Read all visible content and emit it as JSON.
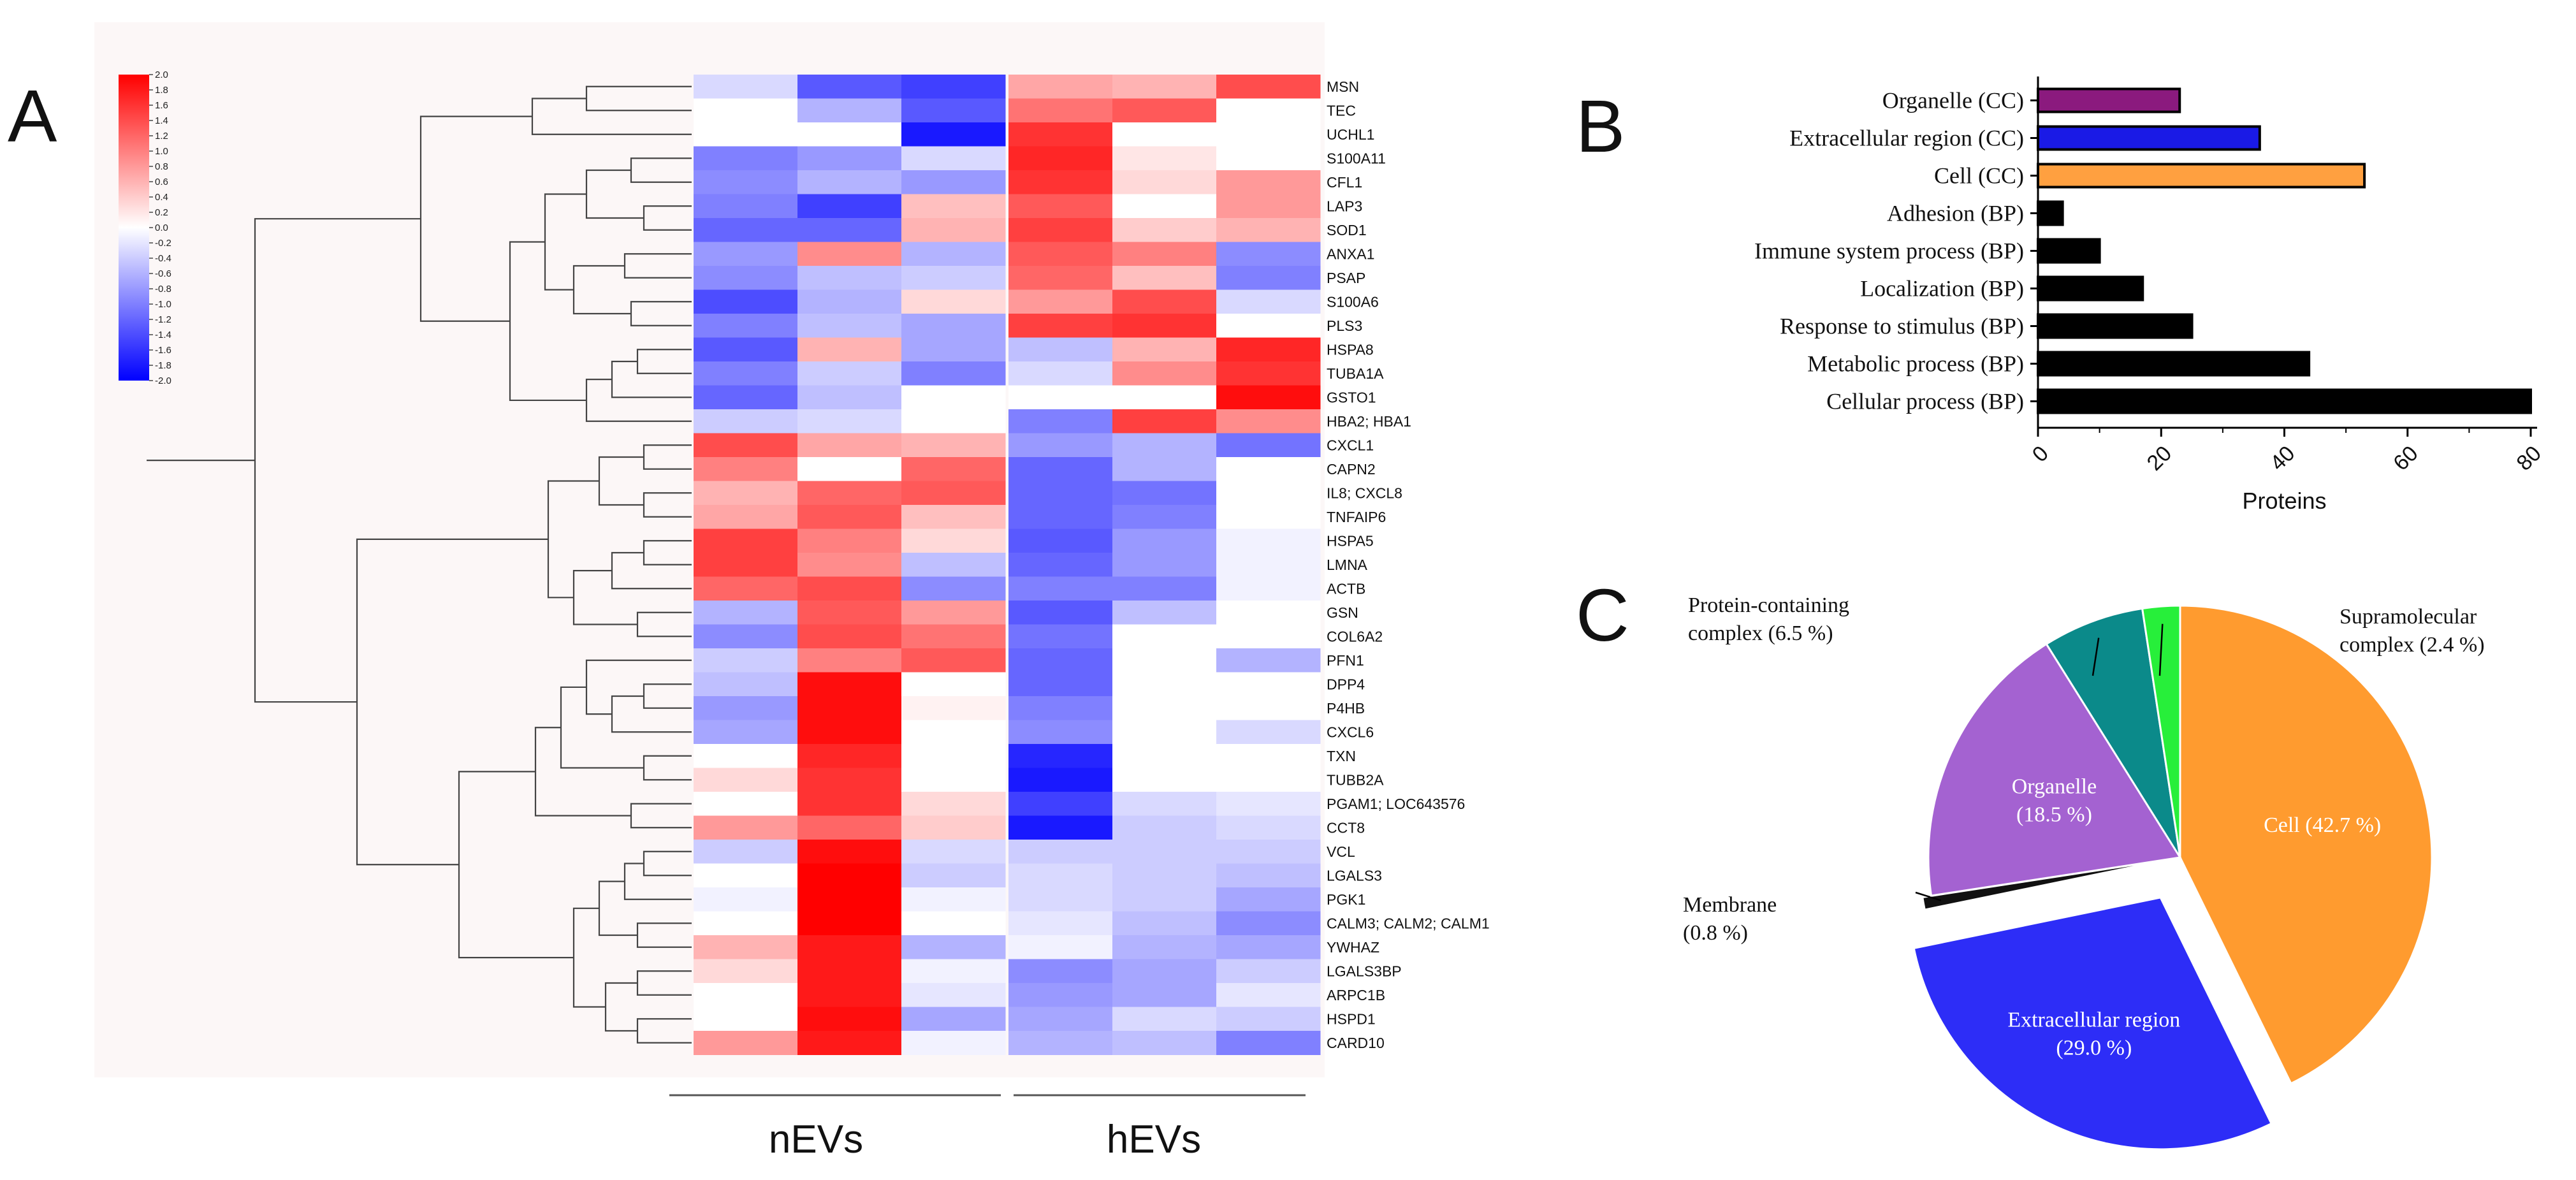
{
  "panels": {
    "a": "A",
    "b": "B",
    "c": "C"
  },
  "chart_data": [
    {
      "type": "heatmap",
      "panel": "A",
      "colorbar": {
        "min": -2.0,
        "max": 2.0,
        "ticks": [
          "2.0",
          "1.8",
          "1.6",
          "1.4",
          "1.2",
          "1.0",
          "0.8",
          "0.6",
          "0.4",
          "0.2",
          "0.0",
          "-0.2",
          "-0.4",
          "-0.6",
          "-0.8",
          "-1.0",
          "-1.2",
          "-1.4",
          "-1.6",
          "-1.8",
          "-2.0"
        ],
        "colors": {
          "low": "#0000ff",
          "mid": "#ffffff",
          "high": "#ff0000"
        }
      },
      "groups": [
        {
          "name": "nEVs",
          "columns": 3
        },
        {
          "name": "hEVs",
          "columns": 3
        }
      ],
      "genes": [
        "MSN",
        "TEC",
        "UCHL1",
        "S100A11",
        "CFL1",
        "LAP3",
        "SOD1",
        "ANXA1",
        "PSAP",
        "S100A6",
        "PLS3",
        "HSPA8",
        "TUBA1A",
        "GSTO1",
        "HBA2; HBA1",
        "CXCL1",
        "CAPN2",
        "IL8; CXCL8",
        "TNFAIP6",
        "HSPA5",
        "LMNA",
        "ACTB",
        "GSN",
        "COL6A2",
        "PFN1",
        "DPP4",
        "P4HB",
        "CXCL6",
        "TXN",
        "TUBB2A",
        "PGAM1; LOC643576",
        "CCT8",
        "VCL",
        "LGALS3",
        "PGK1",
        "CALM3; CALM2; CALM1",
        "YWHAZ",
        "LGALS3BP",
        "ARPC1B",
        "HSPD1",
        "CARD10"
      ],
      "values": [
        [
          -0.3,
          -1.3,
          -1.5,
          0.7,
          0.6,
          1.4
        ],
        [
          0.0,
          -0.6,
          -1.3,
          1.1,
          1.3,
          0.0
        ],
        [
          0.0,
          0.0,
          -1.8,
          1.6,
          0.0,
          0.0
        ],
        [
          -1.0,
          -0.8,
          -0.3,
          1.7,
          0.2,
          0.0
        ],
        [
          -0.9,
          -0.6,
          -0.8,
          1.6,
          0.3,
          0.8
        ],
        [
          -1.0,
          -1.5,
          0.5,
          1.3,
          0.0,
          0.8
        ],
        [
          -1.2,
          -1.2,
          0.6,
          1.5,
          0.4,
          0.6
        ],
        [
          -0.8,
          0.9,
          -0.6,
          1.3,
          1.0,
          -0.9
        ],
        [
          -0.9,
          -0.5,
          -0.4,
          1.2,
          0.5,
          -1.0
        ],
        [
          -1.4,
          -0.6,
          0.3,
          0.8,
          1.4,
          -0.3
        ],
        [
          -1.0,
          -0.5,
          -0.7,
          1.5,
          1.6,
          0.0
        ],
        [
          -1.3,
          0.6,
          -0.7,
          -0.5,
          0.6,
          1.7
        ],
        [
          -1.0,
          -0.4,
          -1.0,
          -0.3,
          0.9,
          1.6
        ],
        [
          -1.2,
          -0.5,
          0.0,
          0.0,
          0.0,
          1.9
        ],
        [
          -0.4,
          -0.3,
          0.0,
          -1.0,
          1.5,
          0.9
        ],
        [
          1.4,
          0.7,
          0.6,
          -0.8,
          -0.6,
          -1.1
        ],
        [
          1.0,
          0.0,
          1.2,
          -1.2,
          -0.6,
          0.0
        ],
        [
          0.6,
          1.2,
          1.3,
          -1.2,
          -1.1,
          0.0
        ],
        [
          0.7,
          1.3,
          0.5,
          -1.2,
          -1.0,
          0.0
        ],
        [
          1.5,
          1.0,
          0.3,
          -1.3,
          -0.8,
          -0.1
        ],
        [
          1.5,
          0.9,
          -0.5,
          -1.2,
          -0.8,
          -0.1
        ],
        [
          1.2,
          1.4,
          -0.9,
          -1.0,
          -1.0,
          -0.1
        ],
        [
          -0.6,
          1.3,
          0.8,
          -1.3,
          -0.5,
          0.0
        ],
        [
          -0.9,
          1.4,
          1.1,
          -1.1,
          0.0,
          0.0
        ],
        [
          -0.4,
          1.0,
          1.3,
          -1.2,
          0.0,
          -0.6
        ],
        [
          -0.5,
          1.9,
          0.0,
          -1.2,
          0.0,
          0.0
        ],
        [
          -0.8,
          1.9,
          0.1,
          -1.0,
          0.0,
          0.0
        ],
        [
          -0.7,
          1.9,
          0.0,
          -0.9,
          0.0,
          -0.3
        ],
        [
          0.0,
          1.7,
          0.0,
          -1.7,
          0.0,
          0.0
        ],
        [
          0.3,
          1.6,
          0.0,
          -1.8,
          0.0,
          0.0
        ],
        [
          0.0,
          1.6,
          0.3,
          -1.5,
          -0.3,
          -0.2
        ],
        [
          0.8,
          1.2,
          0.4,
          -1.8,
          -0.4,
          -0.3
        ],
        [
          -0.4,
          1.9,
          -0.3,
          -0.4,
          -0.4,
          -0.4
        ],
        [
          0.0,
          2.0,
          -0.4,
          -0.3,
          -0.4,
          -0.5
        ],
        [
          -0.1,
          2.0,
          -0.1,
          -0.3,
          -0.4,
          -0.7
        ],
        [
          0.0,
          2.0,
          0.0,
          -0.2,
          -0.5,
          -0.9
        ],
        [
          0.6,
          1.8,
          -0.6,
          -0.1,
          -0.6,
          -0.7
        ],
        [
          0.3,
          1.8,
          -0.1,
          -0.9,
          -0.7,
          -0.4
        ],
        [
          0.0,
          1.8,
          -0.2,
          -0.8,
          -0.7,
          -0.2
        ],
        [
          0.0,
          1.9,
          -0.7,
          -0.7,
          -0.3,
          -0.4
        ],
        [
          0.8,
          1.8,
          -0.1,
          -0.6,
          -0.5,
          -1.0
        ]
      ]
    },
    {
      "type": "bar",
      "panel": "B",
      "orientation": "horizontal",
      "categories": [
        "Organelle (CC)",
        "Extracellular region (CC)",
        "Cell (CC)",
        "Adhesion (BP)",
        "Immune system process (BP)",
        "Localization (BP)",
        "Response to stimulus (BP)",
        "Metabolic process (BP)",
        "Cellular process (BP)"
      ],
      "values": [
        23,
        36,
        53,
        4,
        10,
        17,
        25,
        44,
        80
      ],
      "colors": [
        "#8b1a7e",
        "#1a1ae6",
        "#ffa040",
        "#000000",
        "#000000",
        "#000000",
        "#000000",
        "#000000",
        "#000000"
      ],
      "xlabel": "Proteins",
      "xlim": [
        0,
        80
      ],
      "xticks": [
        0,
        20,
        40,
        60,
        80
      ]
    },
    {
      "type": "pie",
      "panel": "C",
      "slices": [
        {
          "label": "Cell (42.7 %)",
          "value": 42.7,
          "color": "#ff9b2f",
          "label_lines": [
            "Cell (42.7 %)"
          ]
        },
        {
          "label": "Extracellular region (29.0 %)",
          "value": 29.0,
          "color": "#2d2df7",
          "label_lines": [
            "Extracellular region",
            "(29.0 %)"
          ]
        },
        {
          "label": "Membrane (0.8 %)",
          "value": 0.8,
          "color": "#111111",
          "label_lines": [
            "Membrane",
            "(0.8 %)"
          ]
        },
        {
          "label": "Organelle (18.5 %)",
          "value": 18.5,
          "color": "#a462d1",
          "label_lines": [
            "Organelle",
            "(18.5 %)"
          ]
        },
        {
          "label": "Protein-containing complex (6.5 %)",
          "value": 6.5,
          "color": "#0b8a8a",
          "label_lines": [
            "Protein-containing",
            "complex (6.5 %)"
          ]
        },
        {
          "label": "Supramolecular complex (2.4 %)",
          "value": 2.4,
          "color": "#27ef3a",
          "label_lines": [
            "Supramolecular",
            "complex (2.4 %)"
          ]
        }
      ]
    }
  ]
}
